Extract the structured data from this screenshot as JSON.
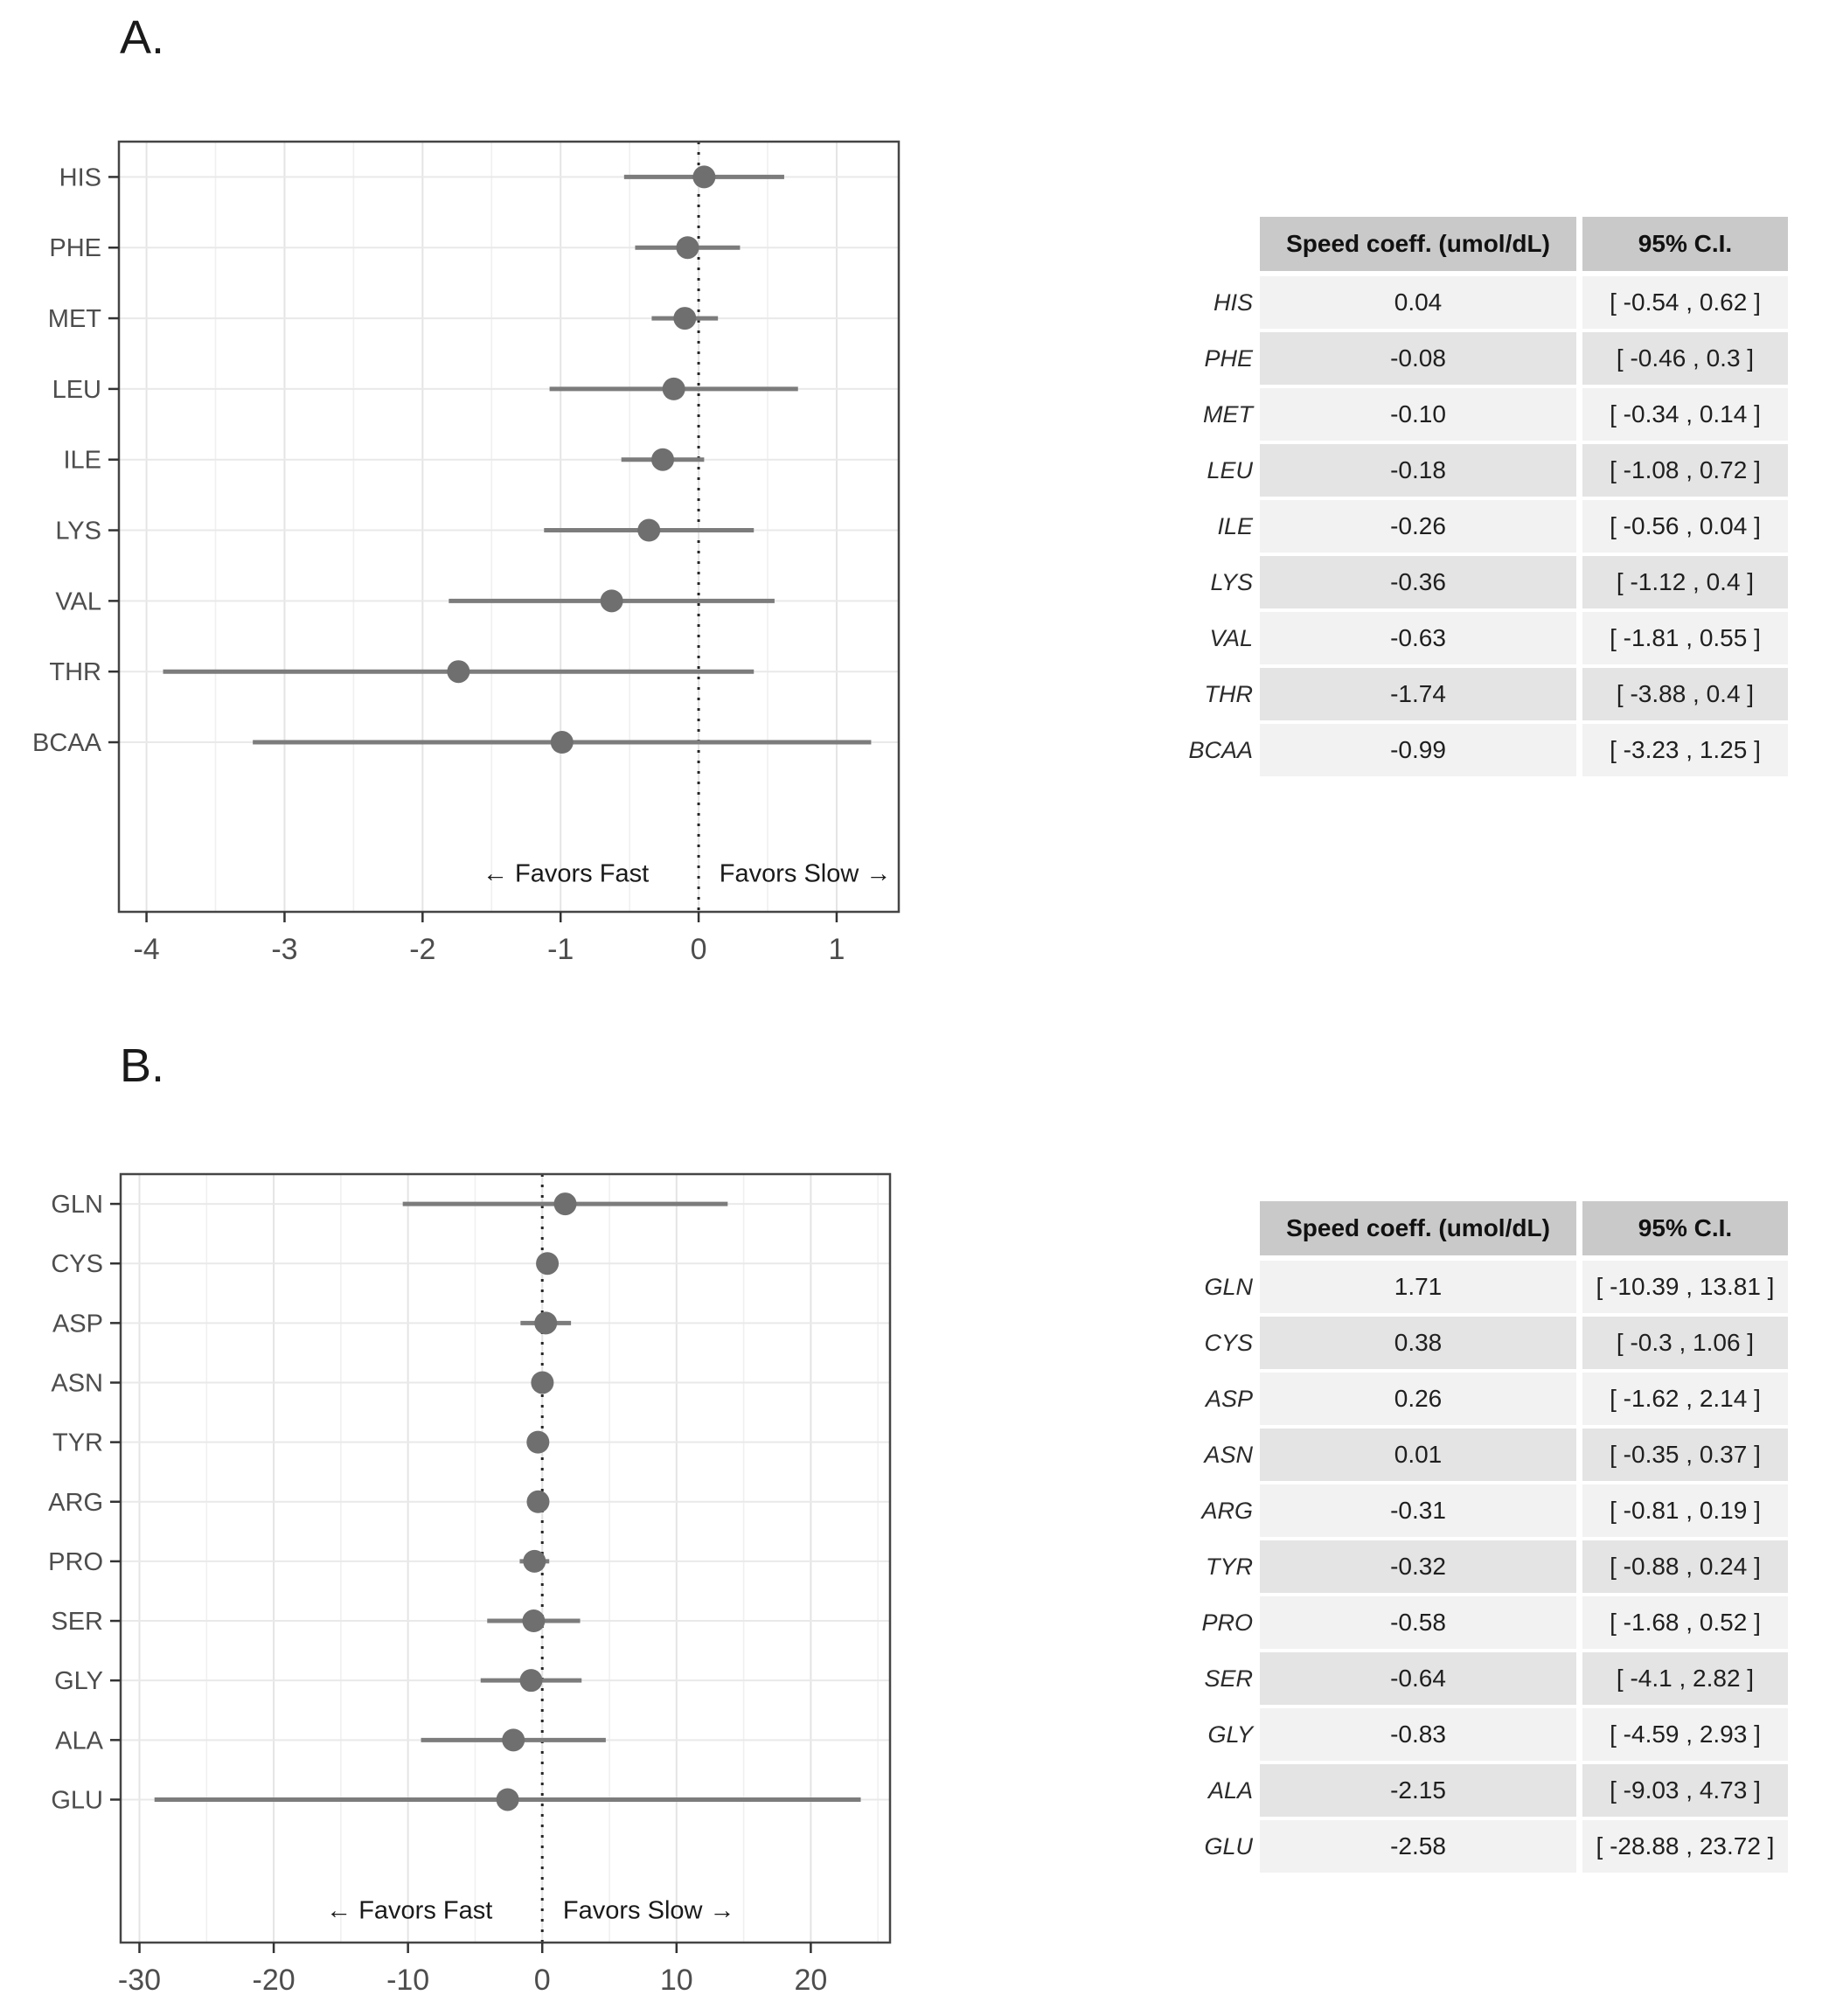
{
  "page": {
    "background": "#ffffff"
  },
  "colors": {
    "point": "#6f6f6f",
    "errorbar": "#7c7c7c",
    "panel_border": "#454545",
    "grid_major": "#e4e4e4",
    "grid_minor": "#f0f0f0",
    "grid_row": "#e9e9e9",
    "refline": "#262626",
    "axis_text": "#4d4d4d",
    "tick_mark": "#333333",
    "annotation_text": "#1a1a1a",
    "table_header_bg": "#c9c9c9",
    "table_row_odd_bg": "#f2f2f2",
    "table_row_even_bg": "#e4e4e4"
  },
  "chart_data": [
    {
      "id": "A",
      "type": "scatter",
      "subtype": "forest-plot-dot-with-ci",
      "panel_label": "A.",
      "title": "",
      "xlabel": "",
      "ylabel": "",
      "categories": [
        "HIS",
        "PHE",
        "MET",
        "LEU",
        "ILE",
        "LYS",
        "VAL",
        "THR",
        "BCAA"
      ],
      "series": [
        {
          "name": "Speed coeff. (umol/dL)",
          "values": [
            0.04,
            -0.08,
            -0.1,
            -0.18,
            -0.26,
            -0.36,
            -0.63,
            -1.74,
            -0.99
          ]
        }
      ],
      "ci_low": [
        -0.54,
        -0.46,
        -0.34,
        -1.08,
        -0.56,
        -1.12,
        -1.81,
        -3.88,
        -3.23
      ],
      "ci_high": [
        0.62,
        0.3,
        0.14,
        0.72,
        0.04,
        0.4,
        0.55,
        0.4,
        1.25
      ],
      "xlim": [
        -4.2,
        1.45
      ],
      "xticks": [
        -4,
        -3,
        -2,
        -1,
        0,
        1
      ],
      "refline_x": 0,
      "grid": true,
      "legend": false,
      "annotation_left": "←  Favors Fast",
      "annotation_right": "Favors Slow  →"
    },
    {
      "id": "B",
      "type": "scatter",
      "subtype": "forest-plot-dot-with-ci",
      "panel_label": "B.",
      "title": "",
      "xlabel": "",
      "ylabel": "",
      "categories": [
        "GLN",
        "CYS",
        "ASP",
        "ASN",
        "TYR",
        "ARG",
        "PRO",
        "SER",
        "GLY",
        "ALA",
        "GLU"
      ],
      "series": [
        {
          "name": "Speed coeff. (umol/dL)",
          "values": [
            1.71,
            0.38,
            0.26,
            0.01,
            -0.32,
            -0.31,
            -0.58,
            -0.64,
            -0.83,
            -2.15,
            -2.58
          ]
        }
      ],
      "ci_low": [
        -10.39,
        -0.3,
        -1.62,
        -0.35,
        -0.88,
        -0.81,
        -1.68,
        -4.1,
        -4.59,
        -9.03,
        -28.88
      ],
      "ci_high": [
        13.81,
        1.06,
        2.14,
        0.37,
        0.24,
        0.19,
        0.52,
        2.82,
        2.93,
        4.73,
        23.72
      ],
      "xlim": [
        -31.4,
        25.9
      ],
      "xticks": [
        -30,
        -20,
        -10,
        0,
        10,
        20
      ],
      "refline_x": 0,
      "grid": true,
      "legend": false,
      "annotation_left": "←  Favors Fast",
      "annotation_right": "Favors Slow  →"
    }
  ],
  "tables": [
    {
      "id": "A",
      "columns": [
        "Speed coeff. (umol/dL)",
        "95% C.I."
      ],
      "rows": [
        {
          "label": "HIS",
          "coeff": "0.04",
          "ci": "[ -0.54 ,  0.62 ]"
        },
        {
          "label": "PHE",
          "coeff": "-0.08",
          "ci": "[ -0.46 ,  0.3 ]"
        },
        {
          "label": "MET",
          "coeff": "-0.10",
          "ci": "[ -0.34 ,  0.14 ]"
        },
        {
          "label": "LEU",
          "coeff": "-0.18",
          "ci": "[ -1.08 ,  0.72 ]"
        },
        {
          "label": "ILE",
          "coeff": "-0.26",
          "ci": "[ -0.56 ,  0.04 ]"
        },
        {
          "label": "LYS",
          "coeff": "-0.36",
          "ci": "[ -1.12 ,  0.4 ]"
        },
        {
          "label": "VAL",
          "coeff": "-0.63",
          "ci": "[ -1.81 ,  0.55 ]"
        },
        {
          "label": "THR",
          "coeff": "-1.74",
          "ci": "[ -3.88 ,  0.4 ]"
        },
        {
          "label": "BCAA",
          "coeff": "-0.99",
          "ci": "[ -3.23 ,  1.25 ]"
        }
      ]
    },
    {
      "id": "B",
      "columns": [
        "Speed coeff. (umol/dL)",
        "95% C.I."
      ],
      "rows": [
        {
          "label": "GLN",
          "coeff": "1.71",
          "ci": "[ -10.39 ,  13.81 ]"
        },
        {
          "label": "CYS",
          "coeff": "0.38",
          "ci": "[ -0.3 ,  1.06 ]"
        },
        {
          "label": "ASP",
          "coeff": "0.26",
          "ci": "[ -1.62 ,  2.14 ]"
        },
        {
          "label": "ASN",
          "coeff": "0.01",
          "ci": "[ -0.35 ,  0.37 ]"
        },
        {
          "label": "ARG",
          "coeff": "-0.31",
          "ci": "[ -0.81 ,  0.19 ]"
        },
        {
          "label": "TYR",
          "coeff": "-0.32",
          "ci": "[ -0.88 ,  0.24 ]"
        },
        {
          "label": "PRO",
          "coeff": "-0.58",
          "ci": "[ -1.68 ,  0.52 ]"
        },
        {
          "label": "SER",
          "coeff": "-0.64",
          "ci": "[ -4.1 ,  2.82 ]"
        },
        {
          "label": "GLY",
          "coeff": "-0.83",
          "ci": "[ -4.59 ,  2.93 ]"
        },
        {
          "label": "ALA",
          "coeff": "-2.15",
          "ci": "[ -9.03 ,  4.73 ]"
        },
        {
          "label": "GLU",
          "coeff": "-2.58",
          "ci": "[ -28.88 ,  23.72 ]"
        }
      ]
    }
  ]
}
